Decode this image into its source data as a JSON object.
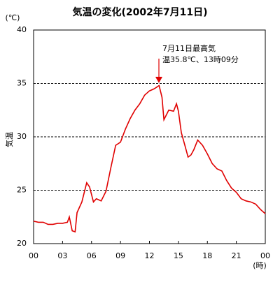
{
  "chart_data": {
    "type": "line",
    "title": "気温の変化(2002年7月11日)",
    "y_unit": "(℃)",
    "y_label": "気温",
    "x_unit": "(時)",
    "annotation": [
      "7月11日最高気",
      "温35.8℃、13時09分"
    ],
    "xlim": [
      0,
      24
    ],
    "xticks": [
      {
        "value": 0,
        "label": "00"
      },
      {
        "value": 3,
        "label": "03"
      },
      {
        "value": 6,
        "label": "06"
      },
      {
        "value": 9,
        "label": "09"
      },
      12,
      15,
      18,
      21,
      {
        "value": 24,
        "label": "00"
      }
    ],
    "ylim": [
      20,
      40
    ],
    "yticks": [
      20,
      25,
      30,
      35,
      40
    ],
    "grid": true,
    "x": [
      0,
      0.5,
      1,
      1.5,
      2,
      2.5,
      3,
      3.5,
      3.7,
      4,
      4.3,
      4.5,
      5,
      5.5,
      5.8,
      6.2,
      6.5,
      7,
      7.5,
      8,
      8.5,
      9,
      9.5,
      10,
      10.5,
      11,
      11.5,
      12,
      12.5,
      13,
      13.3,
      13.5,
      14,
      14.5,
      14.8,
      15,
      15.3,
      15.7,
      16,
      16.3,
      16.6,
      17,
      17.5,
      18,
      18.5,
      19,
      19.5,
      20,
      20.5,
      21,
      21.5,
      22,
      22.5,
      23,
      23.5,
      24
    ],
    "series": [
      {
        "color": "#e00000",
        "values": [
          22.1,
          22.0,
          22.0,
          21.8,
          21.8,
          21.9,
          21.9,
          22.0,
          22.5,
          21.2,
          21.1,
          22.9,
          23.9,
          25.7,
          25.3,
          23.9,
          24.2,
          24.0,
          24.9,
          27.1,
          29.2,
          29.5,
          30.7,
          31.7,
          32.5,
          33.1,
          33.9,
          34.3,
          34.5,
          34.8,
          33.7,
          31.6,
          32.5,
          32.4,
          33.1,
          32.4,
          30.4,
          29.1,
          28.1,
          28.3,
          28.8,
          29.7,
          29.2,
          28.4,
          27.5,
          27.0,
          26.8,
          25.9,
          25.2,
          24.8,
          24.2,
          24.0,
          23.9,
          23.7,
          23.2,
          22.8
        ]
      }
    ]
  }
}
